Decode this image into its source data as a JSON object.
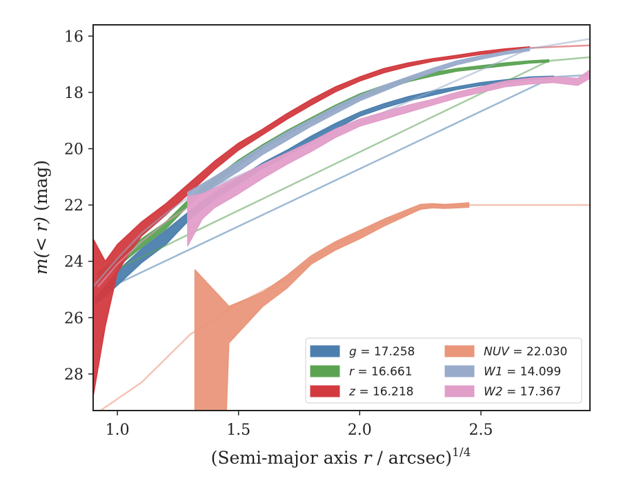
{
  "chart_data": {
    "type": "area",
    "x_label_plain": "(Semi-major axis",
    "x_label_var": "r",
    "x_label_unit": "/ arcsec)",
    "x_label_sup": "1/4",
    "y_label_func": "m",
    "y_label_inner": "(< r)",
    "y_label_unit": "(mag)",
    "xlim": [
      0.9,
      2.95
    ],
    "ylim": [
      29.3,
      15.6
    ],
    "y_inverted": true,
    "x_ticks": [
      {
        "value": 1.0,
        "label": "1.0"
      },
      {
        "value": 1.5,
        "label": "1.5"
      },
      {
        "value": 2.0,
        "label": "2.0"
      },
      {
        "value": 2.5,
        "label": "2.5"
      }
    ],
    "y_ticks": [
      {
        "value": 16,
        "label": "16"
      },
      {
        "value": 18,
        "label": "18"
      },
      {
        "value": 20,
        "label": "20"
      },
      {
        "value": 22,
        "label": "22"
      },
      {
        "value": 24,
        "label": "24"
      },
      {
        "value": 26,
        "label": "26"
      },
      {
        "value": 28,
        "label": "28"
      }
    ],
    "legend_position": "lower-right",
    "series": [
      {
        "key": "g",
        "name": "g = 17.258",
        "legend_var": "g",
        "legend_value": "= 17.258",
        "color": "#4c7fae",
        "band": [
          [
            0.91,
            25.3,
            25.5
          ],
          [
            0.95,
            24.9,
            25.25
          ],
          [
            1.0,
            24.35,
            24.85
          ],
          [
            1.1,
            23.55,
            24.05
          ],
          [
            1.2,
            22.9,
            23.4
          ],
          [
            1.3,
            22.2,
            22.5
          ],
          [
            1.4,
            21.55,
            21.8
          ],
          [
            1.5,
            21.05,
            21.25
          ],
          [
            1.6,
            20.5,
            20.7
          ],
          [
            1.7,
            20.05,
            20.25
          ],
          [
            1.8,
            19.55,
            19.75
          ],
          [
            1.9,
            19.1,
            19.3
          ],
          [
            2.0,
            18.7,
            18.85
          ],
          [
            2.1,
            18.4,
            18.55
          ],
          [
            2.2,
            18.15,
            18.3
          ],
          [
            2.3,
            17.95,
            18.1
          ],
          [
            2.4,
            17.8,
            17.9
          ],
          [
            2.5,
            17.65,
            17.75
          ],
          [
            2.6,
            17.55,
            17.65
          ],
          [
            2.7,
            17.45,
            17.55
          ],
          [
            2.8,
            17.42,
            17.5
          ]
        ],
        "extension": [
          [
            0.91,
            25.5
          ],
          [
            0.95,
            25.0
          ],
          [
            2.8,
            17.45
          ],
          [
            2.95,
            17.38
          ]
        ]
      },
      {
        "key": "r",
        "name": "r = 16.661",
        "legend_var": "r",
        "legend_value": "= 16.661",
        "color": "#5ba353",
        "band": [
          [
            0.92,
            24.4,
            24.7
          ],
          [
            1.0,
            23.9,
            24.2
          ],
          [
            1.1,
            23.2,
            23.5
          ],
          [
            1.2,
            22.6,
            22.85
          ],
          [
            1.3,
            21.75,
            21.95
          ],
          [
            1.4,
            21.05,
            21.25
          ],
          [
            1.5,
            20.4,
            20.6
          ],
          [
            1.6,
            19.85,
            20.0
          ],
          [
            1.7,
            19.35,
            19.5
          ],
          [
            1.8,
            18.9,
            19.05
          ],
          [
            1.9,
            18.45,
            18.6
          ],
          [
            2.0,
            18.05,
            18.2
          ],
          [
            2.1,
            17.75,
            17.9
          ],
          [
            2.2,
            17.5,
            17.62
          ],
          [
            2.3,
            17.3,
            17.42
          ],
          [
            2.4,
            17.15,
            17.25
          ],
          [
            2.5,
            17.05,
            17.15
          ],
          [
            2.6,
            16.95,
            17.05
          ],
          [
            2.7,
            16.88,
            16.96
          ],
          [
            2.78,
            16.84,
            16.92
          ]
        ],
        "extension": [
          [
            0.92,
            24.6
          ],
          [
            2.78,
            16.88
          ],
          [
            2.95,
            16.75
          ]
        ]
      },
      {
        "key": "z",
        "name": "z = 16.218",
        "legend_var": "z",
        "legend_value": "= 16.218",
        "color": "#d23a3f",
        "band": [
          [
            0.9,
            23.2,
            28.8
          ],
          [
            0.95,
            24.0,
            26.3
          ],
          [
            1.0,
            23.4,
            24.4
          ],
          [
            1.05,
            23.0,
            23.7
          ],
          [
            1.1,
            22.6,
            23.1
          ],
          [
            1.2,
            21.95,
            22.35
          ],
          [
            1.3,
            21.2,
            21.55
          ],
          [
            1.4,
            20.45,
            20.75
          ],
          [
            1.5,
            19.8,
            20.05
          ],
          [
            1.6,
            19.3,
            19.5
          ],
          [
            1.7,
            18.75,
            18.95
          ],
          [
            1.8,
            18.25,
            18.45
          ],
          [
            1.9,
            17.8,
            17.98
          ],
          [
            2.0,
            17.45,
            17.6
          ],
          [
            2.1,
            17.15,
            17.3
          ],
          [
            2.2,
            16.95,
            17.08
          ],
          [
            2.3,
            16.8,
            16.9
          ],
          [
            2.4,
            16.68,
            16.78
          ],
          [
            2.5,
            16.55,
            16.65
          ],
          [
            2.6,
            16.45,
            16.55
          ],
          [
            2.7,
            16.38,
            16.46
          ]
        ],
        "extension": [
          [
            2.7,
            16.42
          ],
          [
            2.95,
            16.33
          ]
        ]
      },
      {
        "key": "NUV",
        "name": "NUV = 22.030",
        "legend_var": "NUV",
        "legend_value": "= 22.030",
        "color": "#e9967a",
        "band": [
          [
            1.32,
            24.3,
            29.3
          ],
          [
            1.45,
            25.5,
            29.3
          ],
          [
            1.46,
            25.6,
            26.9
          ],
          [
            1.6,
            25.1,
            25.6
          ],
          [
            1.7,
            24.5,
            24.95
          ],
          [
            1.8,
            23.8,
            24.1
          ],
          [
            1.9,
            23.3,
            23.6
          ],
          [
            2.0,
            22.9,
            23.2
          ],
          [
            2.1,
            22.5,
            22.75
          ],
          [
            2.2,
            22.15,
            22.35
          ],
          [
            2.25,
            21.98,
            22.15
          ],
          [
            2.3,
            21.95,
            22.1
          ],
          [
            2.35,
            21.98,
            22.12
          ],
          [
            2.4,
            21.95,
            22.1
          ],
          [
            2.45,
            21.92,
            22.08
          ]
        ],
        "extension": [
          [
            0.93,
            29.3
          ],
          [
            1.1,
            28.3
          ],
          [
            1.3,
            26.6
          ],
          [
            1.5,
            25.5
          ],
          [
            1.7,
            24.6
          ],
          [
            1.9,
            23.4
          ],
          [
            2.1,
            22.6
          ],
          [
            2.3,
            22.0
          ],
          [
            2.45,
            22.0
          ],
          [
            2.95,
            22.0
          ]
        ]
      },
      {
        "key": "W1",
        "name": "W1 = 14.099",
        "legend_var": "W1",
        "legend_value": "= 14.099",
        "color": "#99abcb",
        "band": [
          [
            1.29,
            21.55,
            21.95
          ],
          [
            1.4,
            21.0,
            21.35
          ],
          [
            1.5,
            20.45,
            20.8
          ],
          [
            1.6,
            19.9,
            20.2
          ],
          [
            1.7,
            19.4,
            19.7
          ],
          [
            1.8,
            18.95,
            19.2
          ],
          [
            1.9,
            18.5,
            18.75
          ],
          [
            2.0,
            18.1,
            18.3
          ],
          [
            2.1,
            17.75,
            17.95
          ],
          [
            2.2,
            17.45,
            17.6
          ],
          [
            2.3,
            17.15,
            17.3
          ],
          [
            2.4,
            16.88,
            17.02
          ],
          [
            2.5,
            16.7,
            16.82
          ],
          [
            2.6,
            16.55,
            16.65
          ],
          [
            2.7,
            16.42,
            16.52
          ]
        ],
        "extension": [
          [
            0.9,
            24.9
          ],
          [
            1.0,
            23.9
          ],
          [
            1.1,
            23.0
          ],
          [
            1.2,
            22.3
          ],
          [
            1.29,
            21.75
          ],
          [
            2.7,
            16.45
          ],
          [
            2.95,
            16.1
          ]
        ]
      },
      {
        "key": "W2",
        "name": "W2 = 17.367",
        "legend_var": "W2",
        "legend_value": "= 17.367",
        "color": "#e19ec9",
        "band": [
          [
            1.29,
            21.7,
            23.45
          ],
          [
            1.35,
            21.6,
            22.5
          ],
          [
            1.4,
            21.4,
            22.1
          ],
          [
            1.5,
            21.0,
            21.6
          ],
          [
            1.6,
            20.55,
            21.05
          ],
          [
            1.7,
            20.15,
            20.55
          ],
          [
            1.8,
            19.75,
            20.1
          ],
          [
            1.9,
            19.3,
            19.6
          ],
          [
            2.0,
            18.95,
            19.2
          ],
          [
            2.1,
            18.7,
            18.95
          ],
          [
            2.2,
            18.45,
            18.7
          ],
          [
            2.3,
            18.25,
            18.45
          ],
          [
            2.4,
            18.0,
            18.2
          ],
          [
            2.5,
            17.8,
            18.0
          ],
          [
            2.6,
            17.6,
            17.8
          ],
          [
            2.7,
            17.5,
            17.7
          ],
          [
            2.8,
            17.45,
            17.65
          ],
          [
            2.9,
            17.5,
            17.75
          ],
          [
            2.95,
            17.2,
            17.5
          ]
        ],
        "extension": [
          [
            0.92,
            24.9
          ],
          [
            1.0,
            24.1
          ],
          [
            1.1,
            23.3
          ],
          [
            1.2,
            22.6
          ],
          [
            1.29,
            22.1
          ]
        ]
      }
    ]
  }
}
